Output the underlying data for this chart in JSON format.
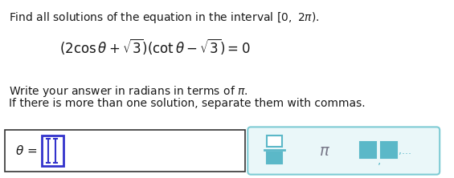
{
  "bg_color": "#ffffff",
  "text_color": "#1a1a1a",
  "line1": "Find all solutions of the equation in the interval $\\left[0,\\ 2\\pi\\right)$.",
  "line2": "$\\left(2\\cos\\theta+\\sqrt{3}\\right)\\left(\\cot\\theta-\\sqrt{3}\\right)=0$",
  "line3": "Write your answer in radians in terms of $\\pi$.",
  "line4": "If there is more than one solution, separate them with commas.",
  "box1_color": "#3333cc",
  "box2_bg": "#eaf7f9",
  "box2_border": "#7ecbd4",
  "pi_color": "#777788",
  "frac_color": "#5bb8c8",
  "input_box_bg": "#ffffff",
  "input_box_border": "#333333",
  "cursor_color": "#3333cc"
}
